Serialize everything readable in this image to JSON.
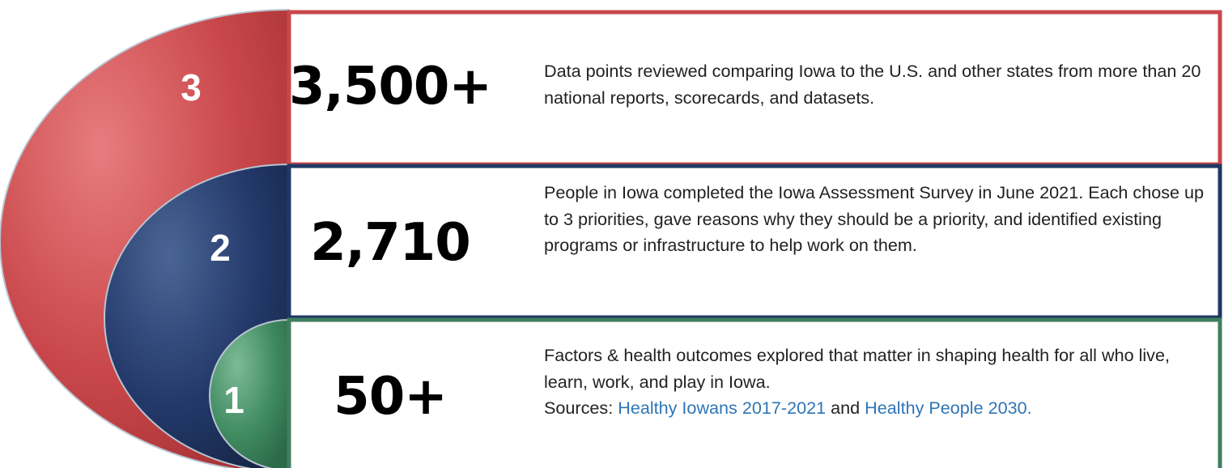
{
  "items": [
    {
      "marker": "3",
      "number": "3,500+",
      "description": "Data points reviewed comparing Iowa to the U.S. and other states from more than 20 national reports, scorecards, and datasets."
    },
    {
      "marker": "2",
      "number": "2,710",
      "description": "People in Iowa completed the Iowa Assessment Survey in June 2021. Each chose up to 3 priorities, gave reasons why they should be a priority, and identified existing programs or infrastructure to help work on them."
    },
    {
      "marker": "1",
      "number": "50+",
      "description": "Factors & health outcomes explored that matter in shaping health for all who live, learn, work, and play in Iowa.",
      "sources": {
        "label": "Sources:",
        "links": [
          "Healthy Iowans 2017-2021",
          "Healthy People 2030."
        ],
        "joiner": "and"
      }
    }
  ]
}
